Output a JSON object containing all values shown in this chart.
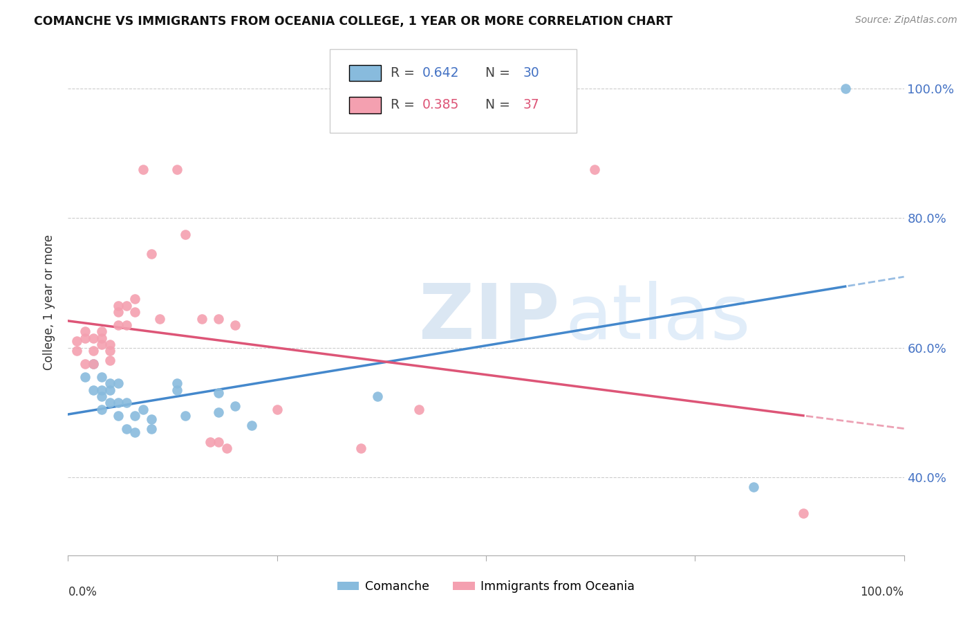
{
  "title": "COMANCHE VS IMMIGRANTS FROM OCEANIA COLLEGE, 1 YEAR OR MORE CORRELATION CHART",
  "source": "Source: ZipAtlas.com",
  "ylabel": "College, 1 year or more",
  "blue_color": "#88bbdd",
  "pink_color": "#f4a0b0",
  "blue_line_color": "#4488cc",
  "pink_line_color": "#dd5577",
  "legend_blue_r": "0.642",
  "legend_blue_n": "30",
  "legend_pink_r": "0.385",
  "legend_pink_n": "37",
  "comanche_x": [
    0.02,
    0.03,
    0.03,
    0.04,
    0.04,
    0.04,
    0.04,
    0.05,
    0.05,
    0.05,
    0.06,
    0.06,
    0.06,
    0.07,
    0.07,
    0.08,
    0.08,
    0.09,
    0.1,
    0.1,
    0.13,
    0.13,
    0.14,
    0.18,
    0.18,
    0.2,
    0.22,
    0.37,
    0.82,
    0.93
  ],
  "comanche_y": [
    0.555,
    0.575,
    0.535,
    0.555,
    0.535,
    0.525,
    0.505,
    0.545,
    0.535,
    0.515,
    0.545,
    0.515,
    0.495,
    0.515,
    0.475,
    0.495,
    0.47,
    0.505,
    0.475,
    0.49,
    0.545,
    0.535,
    0.495,
    0.53,
    0.5,
    0.51,
    0.48,
    0.525,
    0.385,
    1.0
  ],
  "oceania_x": [
    0.01,
    0.01,
    0.02,
    0.02,
    0.02,
    0.03,
    0.03,
    0.03,
    0.04,
    0.04,
    0.04,
    0.05,
    0.05,
    0.05,
    0.06,
    0.06,
    0.06,
    0.07,
    0.07,
    0.08,
    0.08,
    0.09,
    0.1,
    0.11,
    0.13,
    0.14,
    0.16,
    0.17,
    0.18,
    0.18,
    0.19,
    0.2,
    0.25,
    0.35,
    0.42,
    0.63,
    0.88
  ],
  "oceania_y": [
    0.61,
    0.595,
    0.625,
    0.615,
    0.575,
    0.615,
    0.595,
    0.575,
    0.625,
    0.615,
    0.605,
    0.605,
    0.595,
    0.58,
    0.665,
    0.655,
    0.635,
    0.665,
    0.635,
    0.655,
    0.675,
    0.875,
    0.745,
    0.645,
    0.875,
    0.775,
    0.645,
    0.455,
    0.645,
    0.455,
    0.445,
    0.635,
    0.505,
    0.445,
    0.505,
    0.875,
    0.345
  ],
  "xlim": [
    0.0,
    1.0
  ],
  "ylim": [
    0.28,
    1.06
  ],
  "yticks": [
    0.4,
    0.6,
    0.8,
    1.0
  ],
  "ytick_labels": [
    "40.0%",
    "60.0%",
    "80.0%",
    "100.0%"
  ]
}
